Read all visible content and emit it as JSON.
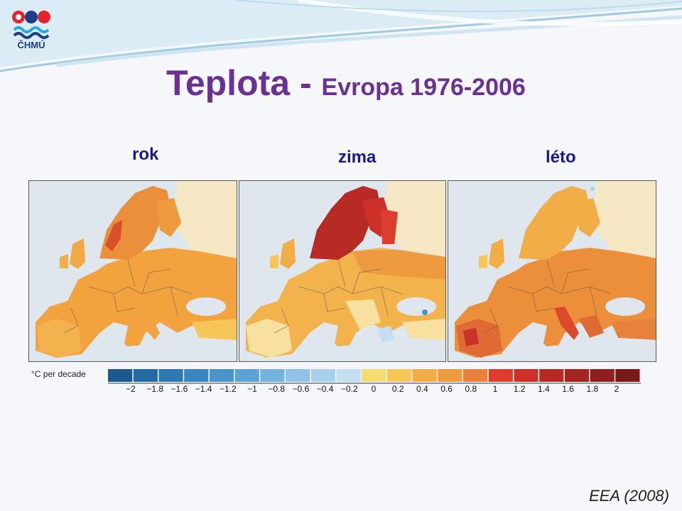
{
  "header": {
    "logo_text": "ČHMÚ",
    "title_main": "Teplota - ",
    "title_sub": "Evropa 1976-2006"
  },
  "panels": [
    {
      "label": "rok"
    },
    {
      "label": "zima"
    },
    {
      "label": "léto"
    }
  ],
  "legend": {
    "unit": "°C per decade",
    "tick_labels": [
      "−2",
      "−1.8",
      "−1.6",
      "−1.4",
      "−1.2",
      "−1",
      "−0.8",
      "−0.6",
      "−0.4",
      "−0.2",
      "0",
      "0.2",
      "0.4",
      "0.6",
      "0.8",
      "1",
      "1.2",
      "1.4",
      "1.6",
      "1.8",
      "2"
    ],
    "colors": [
      "#1b5a8f",
      "#236aa3",
      "#2d78b3",
      "#3886c0",
      "#4995cb",
      "#5aa3d4",
      "#74b3dd",
      "#8fc2e5",
      "#a8d0eb",
      "#c4dff2",
      "#f6dd72",
      "#f6c657",
      "#f2ae46",
      "#ee9a3f",
      "#e8823a",
      "#dc3d2c",
      "#cb3128",
      "#b72a24",
      "#a32420",
      "#8f1f1c",
      "#7a1a18"
    ]
  },
  "source": "EEA (2008)"
}
